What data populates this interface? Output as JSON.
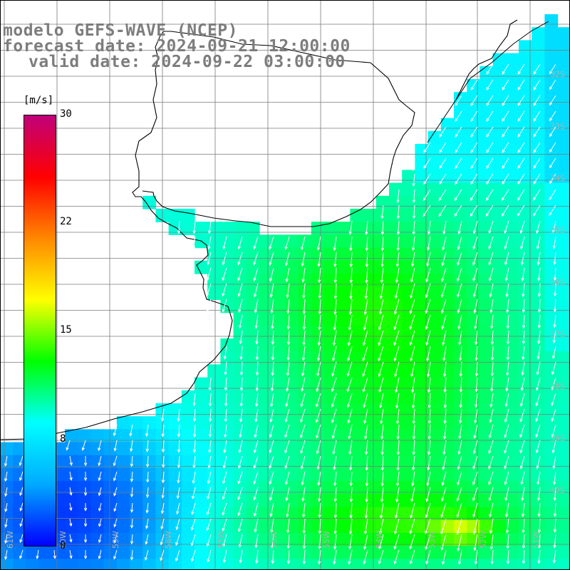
{
  "title": {
    "line1": "modelo GEFS-WAVE (NCEP)",
    "line2": "forecast date: 2024-09-21 12:00:00",
    "line3": "valid date: 2024-09-22 03:00:00"
  },
  "colorbar": {
    "unit": "[m/s]",
    "ticks": [
      "30",
      "22",
      "15",
      "8",
      "0"
    ],
    "tick_values": [
      30,
      22,
      15,
      8,
      0
    ],
    "vmin": 0,
    "vmax": 30,
    "colors": [
      "#0000ff",
      "#00aaff",
      "#00ffff",
      "#00ff00",
      "#ffff00",
      "#ff8800",
      "#ff0000",
      "#c0007a"
    ]
  },
  "grid": {
    "lon_labels": [
      "61W",
      "60W",
      "59W",
      "58W",
      "57W",
      "56W",
      "55W",
      "54W",
      "53W",
      "52W",
      "51W"
    ],
    "lat_labels": [
      "32S",
      "33S",
      "34S",
      "35S",
      "36S",
      "37S",
      "38S",
      "39S",
      "40S"
    ]
  },
  "field": {
    "description_hint": "wind speed field over ocean with white arrows pointing mostly south-southwest"
  }
}
